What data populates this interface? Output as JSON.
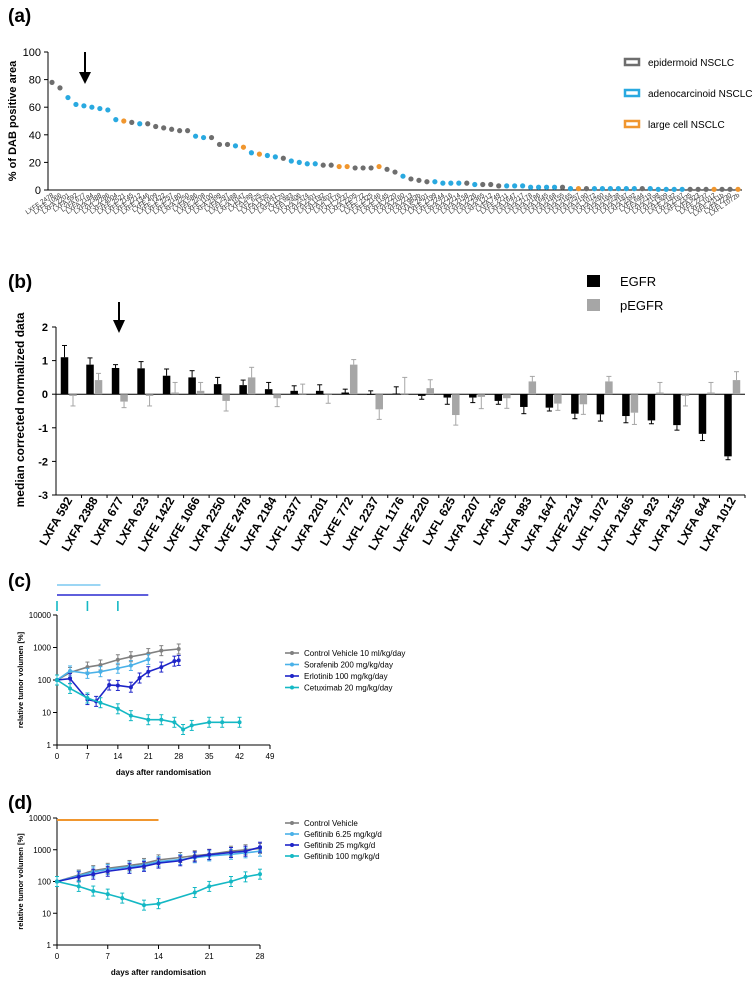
{
  "chart_data": [
    {
      "panel": "(a)",
      "type": "scatter",
      "ylabel": "% of DAB positive area",
      "ylim": [
        0,
        100
      ],
      "yticks": [
        0,
        20,
        40,
        60,
        80,
        100
      ],
      "legend": [
        {
          "name": "epidermoid NSCLC",
          "color": "#6e6e6e"
        },
        {
          "name": "adenocarcinoid NSCLC",
          "color": "#29a9e0"
        },
        {
          "name": "large cell NSCLC",
          "color": "#f0962e"
        }
      ],
      "arrow_at": "LXFA 677",
      "categories": [
        "LXFE 2478",
        "LXFE 1066",
        "LXFA 2201",
        "LXFA 592",
        "LXFA 677",
        "LXFA 2184",
        "LXFA 2388",
        "LXFL 2286",
        "LXFA 4004",
        "LXFE 2521",
        "LXFE 2145",
        "LXFE 2212",
        "LXFE 1346",
        "LXFE 409",
        "LXFE 1422",
        "LXFE 2257",
        "LXFE 2180",
        "LXFA 2250",
        "LXFA 586",
        "LXFE 2208",
        "LXFE 1100",
        "LXFA 2399",
        "LXFA 297",
        "LXFE 2488",
        "LXFA 1047",
        "LXFA 289",
        "LXFL 625",
        "LXFA 1335",
        "LXFA 1041",
        "LXFA 1120",
        "LXFA 983",
        "LXFL 2406",
        "LXFA 2374",
        "LXFA 2301",
        "LXFA 1182",
        "LXFA 2402",
        "LXFL 1176",
        "LXFL 2237",
        "LXFA 2205",
        "LXFE 772",
        "LXFE 2325",
        "LXFE 2146",
        "LXFE 1145",
        "LXFA 2220",
        "LXFA 2160",
        "LXFA 2213",
        "LXFA 983b",
        "LXAS 2401",
        "LXFE 2199",
        "LXFE 2244",
        "LXFA 2216",
        "LXFA 2214",
        "LXFA 2158",
        "LXFA 2226",
        "LXFA 2365",
        "LXFA 1212",
        "LXFA 749",
        "LXFE 2211",
        "LXFA 1647",
        "LXFA 2217",
        "LXFA 2178",
        "LXFA 2186",
        "LXFA 1645",
        "LXFA 2168",
        "LXFA 2155",
        "LXFA 2165",
        "LXFA 2257",
        "LXFA 2190",
        "LXFL 1072",
        "LXFA 2260",
        "LXFA 2164",
        "LXFA 2238",
        "LXFA 2187",
        "LXFA 2392",
        "LXFA 644",
        "LXFA 2219",
        "LXFA 2198",
        "LXFA 1309",
        "LXFE 2182",
        "LXFA 2167",
        "LXFE 2335",
        "LXFA 923",
        "LXFE 2237",
        "LXFA 1012",
        "LXFE 2211b",
        "LXFA 2230",
        "LXFL 1072b"
      ],
      "values": [
        78,
        74,
        67,
        62,
        61,
        60,
        59,
        58,
        51,
        50,
        49,
        48,
        48,
        46,
        45,
        44,
        43,
        43,
        39,
        38,
        38,
        33,
        33,
        32,
        31,
        27,
        26,
        25,
        24,
        23,
        21,
        20,
        19,
        19,
        18,
        18,
        17,
        17,
        16,
        16,
        16,
        17,
        15,
        13,
        10,
        8,
        7,
        6,
        6,
        5,
        5,
        5,
        5,
        4,
        4,
        4,
        3,
        3,
        3,
        3,
        2,
        2,
        2,
        2,
        2,
        1,
        1,
        1,
        1,
        1,
        1,
        1,
        1,
        1,
        1,
        1,
        0.5,
        0.5,
        0.5,
        0.5,
        0.5,
        0.5,
        0.5,
        0.5,
        0.5,
        0.5,
        0.5
      ],
      "groups": [
        "e",
        "e",
        "a",
        "a",
        "a",
        "a",
        "a",
        "a",
        "a",
        "l",
        "e",
        "a",
        "e",
        "e",
        "e",
        "e",
        "e",
        "e",
        "a",
        "a",
        "e",
        "e",
        "e",
        "a",
        "l",
        "a",
        "l",
        "a",
        "a",
        "e",
        "a",
        "a",
        "a",
        "a",
        "e",
        "e",
        "l",
        "l",
        "e",
        "e",
        "e",
        "l",
        "e",
        "e",
        "a",
        "e",
        "e",
        "e",
        "a",
        "a",
        "a",
        "a",
        "e",
        "a",
        "e",
        "e",
        "e",
        "a",
        "a",
        "a",
        "a",
        "a",
        "a",
        "a",
        "e",
        "a",
        "l",
        "e",
        "a",
        "a",
        "a",
        "a",
        "a",
        "a",
        "e",
        "a",
        "a",
        "a",
        "a",
        "a",
        "e",
        "e",
        "e",
        "l",
        "e",
        "e",
        "l"
      ]
    },
    {
      "panel": "(b)",
      "type": "bar",
      "ylabel": "median corrected normalized data",
      "ylim": [
        -3,
        2
      ],
      "yticks": [
        -3,
        -2,
        -1,
        0,
        1,
        2
      ],
      "arrow_at": "LXFA 677",
      "categories": [
        "LXFA 592",
        "LXFA 2388",
        "LXFA 677",
        "LXFA 623",
        "LXFE 1422",
        "LXFE 1066",
        "LXFA 2250",
        "LXFE 2478",
        "LXFA 2184",
        "LXFL 2377",
        "LXFA 2201",
        "LXFE 772",
        "LXFL 2237",
        "LXFL 1176",
        "LXFE 2220",
        "LXFL 625",
        "LXFA 2207",
        "LXFA 526",
        "LXFA 983",
        "LXFA 1647",
        "LXFE 2214",
        "LXFL 1072",
        "LXFA 2165",
        "LXFA 923",
        "LXFA 2155",
        "LXFA 644",
        "LXFA 1012"
      ],
      "series": [
        {
          "name": "EGFR",
          "color": "#000000",
          "values": [
            1.1,
            0.88,
            0.78,
            0.77,
            0.55,
            0.5,
            0.3,
            0.27,
            0.15,
            0.1,
            0.1,
            0.05,
            0.0,
            0.02,
            -0.05,
            -0.1,
            -0.1,
            -0.2,
            -0.38,
            -0.4,
            -0.58,
            -0.6,
            -0.65,
            -0.78,
            -0.92,
            -1.18,
            -1.85
          ],
          "errors": [
            0.35,
            0.2,
            0.1,
            0.2,
            0.2,
            0.2,
            0.2,
            0.15,
            0.2,
            0.15,
            0.18,
            0.1,
            0.1,
            0.2,
            0.1,
            0.2,
            0.15,
            0.1,
            0.2,
            0.1,
            0.15,
            0.2,
            0.2,
            0.1,
            0.15,
            0.2,
            0.1
          ]
        },
        {
          "name": "pEGFR",
          "color": "#a6a6a6",
          "values": [
            -0.05,
            0.42,
            -0.22,
            -0.05,
            0.05,
            0.1,
            -0.2,
            0.5,
            -0.12,
            0.0,
            -0.02,
            0.88,
            -0.45,
            0.0,
            0.18,
            -0.62,
            -0.08,
            -0.12,
            0.38,
            -0.28,
            -0.3,
            0.38,
            -0.55,
            0.05,
            -0.05,
            0.05,
            0.42
          ],
          "errors": [
            0.3,
            0.2,
            0.18,
            0.3,
            0.3,
            0.25,
            0.3,
            0.3,
            0.25,
            0.3,
            0.25,
            0.15,
            0.3,
            0.5,
            0.25,
            0.3,
            0.35,
            0.3,
            0.15,
            0.2,
            0.3,
            0.15,
            0.35,
            0.3,
            0.3,
            0.3,
            0.25
          ]
        }
      ]
    },
    {
      "panel": "(c)",
      "type": "line",
      "xlabel": "days after randomisation",
      "ylabel": "relative tumor volumen [%]",
      "xlim": [
        0,
        49
      ],
      "xticks": [
        0,
        7,
        14,
        21,
        28,
        35,
        42,
        49
      ],
      "yscale": "log",
      "ylim": [
        1,
        10000
      ],
      "yticks": [
        1,
        10,
        100,
        1000,
        10000
      ],
      "treatment_bars": [
        {
          "color": "#7cc8f0",
          "from": 0,
          "to": 10
        },
        {
          "color": "#2a2ad0",
          "from": 0,
          "to": 21
        }
      ],
      "treatment_ticks": {
        "color": "#14b8c4",
        "days": [
          0,
          7,
          14
        ]
      },
      "series": [
        {
          "name": "Control Vehicle 10 ml/kg/day",
          "color": "#808080",
          "x": [
            0,
            3,
            7,
            10,
            14,
            17,
            21,
            24,
            28
          ],
          "y": [
            100,
            170,
            250,
            290,
            420,
            520,
            650,
            800,
            900
          ]
        },
        {
          "name": "Sorafenib 200 mg/kg/day",
          "color": "#4ab1e8",
          "x": [
            0,
            3,
            7,
            10,
            14,
            17,
            21
          ],
          "y": [
            100,
            190,
            160,
            180,
            230,
            280,
            430
          ]
        },
        {
          "name": "Erlotinib 100 mg/kg/day",
          "color": "#1e24c8",
          "x": [
            0,
            3,
            7,
            9,
            12,
            14,
            17,
            19,
            21,
            24,
            27,
            28
          ],
          "y": [
            100,
            110,
            25,
            22,
            70,
            68,
            60,
            115,
            180,
            250,
            380,
            400
          ]
        },
        {
          "name": "Cetuximab 20 mg/kg/day",
          "color": "#14b8c4",
          "x": [
            0,
            3,
            7,
            10,
            14,
            17,
            21,
            24,
            27,
            29,
            31,
            35,
            38,
            42
          ],
          "y": [
            100,
            55,
            28,
            20,
            13,
            8,
            6,
            6,
            5,
            3,
            4,
            5,
            5,
            5
          ]
        }
      ]
    },
    {
      "panel": "(d)",
      "type": "line",
      "xlabel": "days after randomisation",
      "ylabel": "relative tumor volumen [%]",
      "xlim": [
        0,
        28
      ],
      "xticks": [
        0,
        7,
        14,
        21,
        28
      ],
      "yscale": "log",
      "ylim": [
        1,
        10000
      ],
      "yticks": [
        1,
        10,
        100,
        1000,
        10000
      ],
      "treatment_bars": [
        {
          "color": "#f0962e",
          "from": 0,
          "to": 14
        }
      ],
      "series": [
        {
          "name": "Control Vehicle",
          "color": "#808080",
          "x": [
            0,
            3,
            5,
            7,
            10,
            12,
            14,
            17,
            19,
            21,
            24,
            26,
            28
          ],
          "y": [
            100,
            160,
            220,
            260,
            320,
            370,
            480,
            570,
            650,
            720,
            900,
            1000,
            1100
          ]
        },
        {
          "name": "Gefitinib 6.25 mg/kg/d",
          "color": "#4ab1e8",
          "x": [
            0,
            3,
            5,
            7,
            10,
            12,
            14,
            17,
            19,
            21,
            24,
            26,
            28
          ],
          "y": [
            100,
            150,
            200,
            240,
            290,
            330,
            420,
            490,
            560,
            640,
            720,
            800,
            900
          ]
        },
        {
          "name": "Gefitinib 25 mg/kg/d",
          "color": "#1e24c8",
          "x": [
            0,
            3,
            5,
            7,
            10,
            12,
            14,
            17,
            19,
            21,
            24,
            26,
            28
          ],
          "y": [
            100,
            140,
            170,
            210,
            260,
            300,
            380,
            450,
            600,
            700,
            820,
            900,
            1200
          ]
        },
        {
          "name": "Gefitinib 100 mg/kg/d",
          "color": "#14b8c4",
          "x": [
            0,
            3,
            5,
            7,
            9,
            12,
            14,
            19,
            21,
            24,
            26,
            28
          ],
          "y": [
            100,
            70,
            50,
            40,
            30,
            18,
            20,
            45,
            70,
            100,
            140,
            170
          ]
        }
      ]
    }
  ]
}
